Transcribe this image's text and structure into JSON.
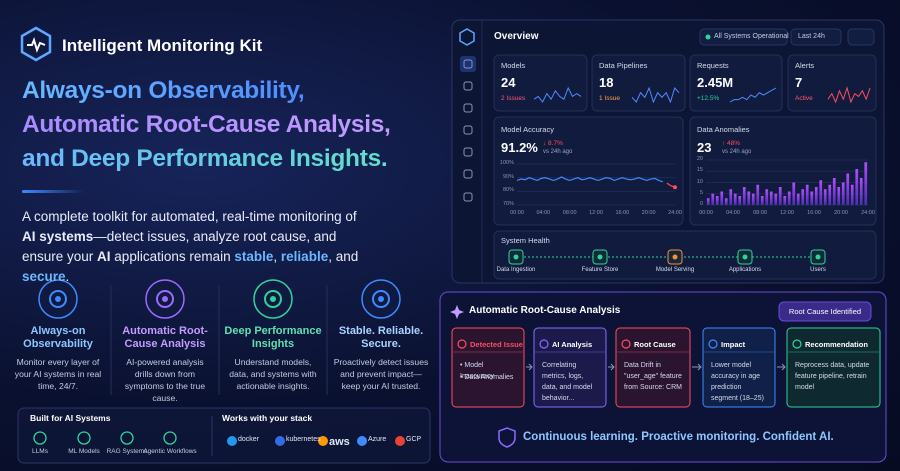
{
  "brand": "Intelligent Monitoring Kit",
  "headline": [
    "Always-on Observability,",
    "Automatic Root-Cause Analysis,",
    "and Deep Performance Insights."
  ],
  "description": [
    {
      "text": "A complete toolkit for automated, real-time monitoring of "
    },
    {
      "text": "AI systems",
      "style": "bold"
    },
    {
      "text": "—detect issues, analyze root cause, and ensure your "
    },
    {
      "text": "AI",
      "style": "bold"
    },
    {
      "text": " applications remain "
    },
    {
      "text": "stable",
      "style": "accent"
    },
    {
      "text": ", "
    },
    {
      "text": "reliable",
      "style": "accent"
    },
    {
      "text": ", and "
    },
    {
      "text": "secure",
      "style": "accent"
    },
    {
      "text": "."
    }
  ],
  "features": [
    {
      "title": "Always-on Observability",
      "text": "Monitor every layer of your AI systems in real time, 24/7.",
      "color": "#8cc8ff",
      "icon_color": "#3d8bff"
    },
    {
      "title": "Automatic Root-Cause Analysis",
      "text": "AI-powered analysis drills down from symptoms to the true cause.",
      "color": "#c49bff",
      "icon_color": "#9b6bff"
    },
    {
      "title": "Deep Performance Insights",
      "text": "Understand models, data, and systems with actionable insights.",
      "color": "#5fe0b0",
      "icon_color": "#2fd39a"
    },
    {
      "title": "Stable. Reliable. Secure.",
      "text": "Proactively detect issues and prevent impact—keep your AI trusted.",
      "color": "#a8d4ff",
      "icon_color": "#3d8bff"
    }
  ],
  "built_for": {
    "title": "Built for AI Systems",
    "items": [
      "LLMs",
      "ML Models",
      "RAG Systems",
      "Agentic Workflows"
    ]
  },
  "stack": {
    "title": "Works with your stack",
    "items": [
      "docker",
      "kubernetes",
      "aws",
      "Azure",
      "GCP"
    ]
  },
  "dashboard": {
    "title": "Overview",
    "status": "All Systems Operational",
    "range": "Last 24h",
    "kpis": [
      {
        "label": "Models",
        "value": "24",
        "note": "2 Issues",
        "note_color": "#ff5a6a",
        "line_color": "#4f8cff",
        "spark": [
          5,
          6,
          4,
          7,
          5,
          8,
          6,
          5,
          9,
          6,
          7,
          6
        ]
      },
      {
        "label": "Data Pipelines",
        "value": "18",
        "note": "1 Issue",
        "note_color": "#ffa53d",
        "line_color": "#4f8cff",
        "spark": [
          6,
          5,
          7,
          6,
          8,
          5,
          7,
          6,
          7,
          5,
          8,
          7
        ]
      },
      {
        "label": "Requests",
        "value": "2.45M",
        "note": "+12.5%",
        "note_color": "#2fd39a",
        "line_color": "#4f8cff",
        "spark": [
          4,
          5,
          5,
          6,
          5,
          7,
          6,
          8,
          7,
          8,
          9,
          10
        ]
      },
      {
        "label": "Alerts",
        "value": "7",
        "note": "Active",
        "note_color": "#ff5a6a",
        "line_color": "#ff4d5e",
        "spark": [
          5,
          7,
          4,
          8,
          5,
          9,
          4,
          7,
          6,
          8,
          5,
          9
        ]
      }
    ],
    "accuracy": {
      "title": "Model Accuracy",
      "value": "91.2%",
      "change": "↓ 8.7%",
      "compare": "vs 24h ago",
      "ylim": [
        70,
        100
      ],
      "yticks": [
        {
          "value": 100,
          "label": "100%"
        },
        {
          "value": 90,
          "label": "90%"
        },
        {
          "value": 80,
          "label": "80%"
        },
        {
          "value": 70,
          "label": "70%"
        }
      ],
      "x_labels": [
        "00:00",
        "04:00",
        "08:00",
        "12:00",
        "16:00",
        "20:00",
        "24:00"
      ],
      "values": [
        88,
        89,
        88.5,
        90,
        89,
        88,
        89.5,
        90,
        89,
        88,
        89,
        90.5,
        89,
        88,
        89,
        90,
        88.5,
        89,
        90,
        89,
        88,
        89,
        90,
        89.5,
        88,
        89,
        90,
        89,
        88.5,
        89,
        90,
        89,
        88,
        89,
        89.5,
        88,
        87,
        86,
        84,
        83
      ],
      "color": "#3d8bff",
      "alert_color": "#ff4d5e"
    },
    "anomalies": {
      "title": "Data Anomalies",
      "value": "23",
      "change": "↑ 48%",
      "compare": "vs 24h ago",
      "ylim": [
        0,
        20
      ],
      "yticks": [
        0,
        5,
        10,
        15,
        20
      ],
      "x_labels": [
        "00:00",
        "04:00",
        "08:00",
        "12:00",
        "16:00",
        "20:00",
        "24:00"
      ],
      "values": [
        3,
        5,
        4,
        6,
        3,
        7,
        5,
        4,
        8,
        6,
        5,
        9,
        4,
        7,
        6,
        5,
        8,
        4,
        6,
        10,
        5,
        7,
        9,
        6,
        8,
        11,
        7,
        9,
        12,
        8,
        10,
        14,
        9,
        16,
        12,
        19
      ],
      "color": "#7b4dff"
    },
    "health": {
      "title": "System Health",
      "nodes": [
        {
          "label": "Data Ingestion",
          "color": "#2fd39a"
        },
        {
          "label": "Feature Store",
          "color": "#2fd39a"
        },
        {
          "label": "Model Serving",
          "color": "#ff8a3d"
        },
        {
          "label": "Applications",
          "color": "#2fd39a"
        },
        {
          "label": "Users",
          "color": "#2fd39a"
        }
      ]
    }
  },
  "rca": {
    "title": "Automatic Root-Cause Analysis",
    "badge": "Root Cause Identified",
    "cards": [
      {
        "title": "Detected Issue",
        "lines": [
          "• Model Inaccuracy",
          "• Data Anomalies"
        ],
        "color": "#ff4d5e"
      },
      {
        "title": "AI Analysis",
        "lines": [
          "Correlating metrics, logs, data, and model behavior..."
        ],
        "color": "#8b6bff"
      },
      {
        "title": "Root Cause",
        "lines": [
          "Data Drift in \"user_age\" feature from Source: CRM"
        ],
        "color": "#ff4d5e"
      },
      {
        "title": "Impact",
        "lines": [
          "Lower model accuracy in age prediction segment (18–25)"
        ],
        "color": "#3d8bff"
      },
      {
        "title": "Recommendation",
        "lines": [
          "Reprocess data, update feature pipeline, retrain model"
        ],
        "color": "#2fd39a"
      }
    ],
    "footer": "Continuous learning. Proactive monitoring. Confident AI."
  }
}
